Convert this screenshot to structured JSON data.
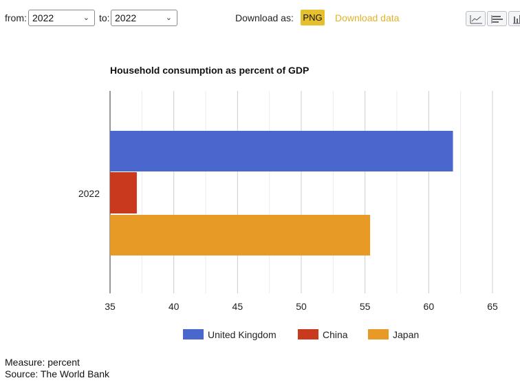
{
  "controls": {
    "from_label": "from:",
    "from_value": "2022",
    "to_label": "to:",
    "to_value": "2022",
    "download_label": "Download as:",
    "png_label": "PNG",
    "download_data_label": "Download data",
    "view_buttons": [
      "line-chart-icon",
      "bar-chart-icon",
      "column-chart-icon"
    ]
  },
  "chart_data": {
    "type": "bar",
    "orientation": "horizontal",
    "title": "Household consumption as percent of GDP",
    "categories": [
      "2022"
    ],
    "series": [
      {
        "name": "United Kingdom",
        "color": "#4a67cd",
        "values": [
          61.9
        ]
      },
      {
        "name": "China",
        "color": "#c9391d",
        "values": [
          37.1
        ]
      },
      {
        "name": "Japan",
        "color": "#e89a26",
        "values": [
          55.4
        ]
      }
    ],
    "xlim": [
      35,
      65
    ],
    "xticks": [
      35,
      40,
      45,
      50,
      55,
      60,
      65
    ],
    "grid": true,
    "legend_position": "bottom"
  },
  "footer": {
    "measure": "Measure: percent",
    "source": "Source: The World Bank"
  }
}
